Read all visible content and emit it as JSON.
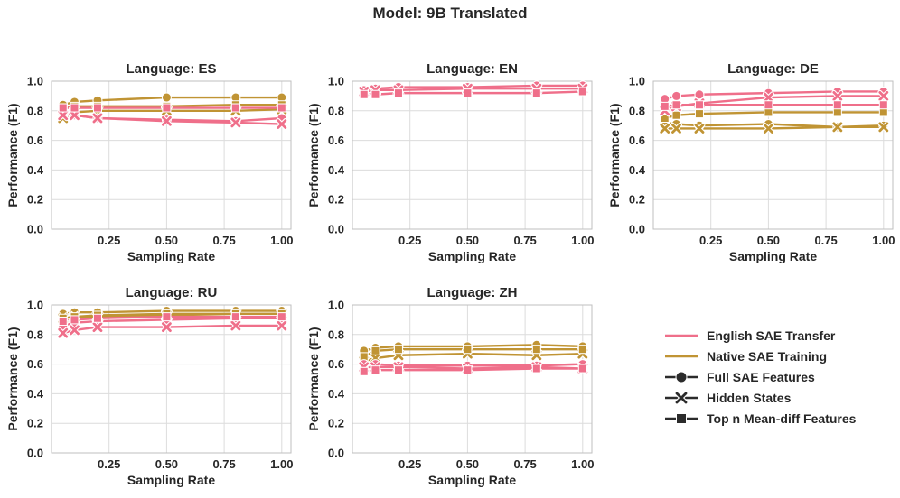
{
  "suptitle": "Model: 9B Translated",
  "colors": {
    "transfer": "#ef6f8a",
    "native": "#c09434",
    "grid": "#dcdcdc",
    "spine": "#bfbfbf",
    "legend_marker": "#2b2b2b"
  },
  "legend": {
    "items": [
      {
        "label": "English SAE Transfer",
        "kind": "line",
        "color_key": "transfer"
      },
      {
        "label": "Native SAE Training",
        "kind": "line",
        "color_key": "native"
      },
      {
        "label": "Full SAE Features",
        "kind": "marker",
        "marker": "circle"
      },
      {
        "label": "Hidden States",
        "kind": "marker",
        "marker": "x"
      },
      {
        "label": "Top n Mean-diff Features",
        "kind": "marker",
        "marker": "square"
      }
    ]
  },
  "chart_data": [
    {
      "type": "line",
      "title": "Language: ES",
      "xlabel": "Sampling Rate",
      "ylabel": "Performance (F1)",
      "xlim": [
        0.0,
        1.04
      ],
      "ylim": [
        0.0,
        1.0
      ],
      "xticks": [
        "0.25",
        "0.50",
        "0.75",
        "1.00"
      ],
      "yticks": [
        "0.0",
        "0.2",
        "0.4",
        "0.6",
        "0.8",
        "1.0"
      ],
      "x": [
        0.05,
        0.1,
        0.2,
        0.5,
        0.8,
        1.0
      ],
      "series": [
        {
          "name": "English SAE Transfer - Full SAE Features",
          "group": "transfer",
          "marker": "circle",
          "values": [
            0.78,
            0.77,
            0.75,
            0.74,
            0.73,
            0.75
          ]
        },
        {
          "name": "English SAE Transfer - Hidden States",
          "group": "transfer",
          "marker": "x",
          "values": [
            0.77,
            0.77,
            0.75,
            0.73,
            0.72,
            0.71
          ]
        },
        {
          "name": "English SAE Transfer - Top n Mean-diff Features",
          "group": "transfer",
          "marker": "square",
          "values": [
            0.82,
            0.82,
            0.82,
            0.82,
            0.82,
            0.82
          ]
        },
        {
          "name": "Native SAE Training - Full SAE Features",
          "group": "native",
          "marker": "circle",
          "values": [
            0.84,
            0.86,
            0.87,
            0.89,
            0.89,
            0.89
          ]
        },
        {
          "name": "Native SAE Training - Hidden States",
          "group": "native",
          "marker": "x",
          "values": [
            0.75,
            0.79,
            0.8,
            0.8,
            0.8,
            0.81
          ]
        },
        {
          "name": "Native SAE Training - Top n Mean-diff Features",
          "group": "native",
          "marker": "square",
          "values": [
            0.82,
            0.83,
            0.83,
            0.83,
            0.84,
            0.84
          ]
        }
      ]
    },
    {
      "type": "line",
      "title": "Language: EN",
      "xlabel": "Sampling Rate",
      "ylabel": "Performance (F1)",
      "xlim": [
        0.0,
        1.04
      ],
      "ylim": [
        0.0,
        1.0
      ],
      "xticks": [
        "0.25",
        "0.50",
        "0.75",
        "1.00"
      ],
      "yticks": [
        "0.0",
        "0.2",
        "0.4",
        "0.6",
        "0.8",
        "1.0"
      ],
      "x": [
        0.05,
        0.1,
        0.2,
        0.5,
        0.8,
        1.0
      ],
      "series": [
        {
          "name": "English SAE Transfer - Full SAE Features",
          "group": "transfer",
          "marker": "circle",
          "values": [
            0.94,
            0.95,
            0.96,
            0.96,
            0.97,
            0.97
          ]
        },
        {
          "name": "English SAE Transfer - Hidden States",
          "group": "transfer",
          "marker": "x",
          "values": [
            0.93,
            0.94,
            0.94,
            0.95,
            0.95,
            0.95
          ]
        },
        {
          "name": "English SAE Transfer - Top n Mean-diff Features",
          "group": "transfer",
          "marker": "square",
          "values": [
            0.91,
            0.91,
            0.92,
            0.92,
            0.92,
            0.93
          ]
        }
      ]
    },
    {
      "type": "line",
      "title": "Language: DE",
      "xlabel": "Sampling Rate",
      "ylabel": "Performance (F1)",
      "xlim": [
        0.0,
        1.04
      ],
      "ylim": [
        0.0,
        1.0
      ],
      "xticks": [
        "0.25",
        "0.50",
        "0.75",
        "1.00"
      ],
      "yticks": [
        "0.0",
        "0.2",
        "0.4",
        "0.6",
        "0.8",
        "1.0"
      ],
      "x": [
        0.05,
        0.1,
        0.2,
        0.5,
        0.8,
        1.0
      ],
      "series": [
        {
          "name": "English SAE Transfer - Full SAE Features",
          "group": "transfer",
          "marker": "circle",
          "values": [
            0.88,
            0.9,
            0.91,
            0.92,
            0.93,
            0.93
          ]
        },
        {
          "name": "English SAE Transfer - Hidden States",
          "group": "transfer",
          "marker": "x",
          "values": [
            0.8,
            0.83,
            0.85,
            0.89,
            0.9,
            0.9
          ]
        },
        {
          "name": "English SAE Transfer - Top n Mean-diff Features",
          "group": "transfer",
          "marker": "square",
          "values": [
            0.83,
            0.84,
            0.84,
            0.84,
            0.84,
            0.84
          ]
        },
        {
          "name": "Native SAE Training - Full SAE Features",
          "group": "native",
          "marker": "circle",
          "values": [
            0.72,
            0.71,
            0.7,
            0.71,
            0.69,
            0.7
          ]
        },
        {
          "name": "Native SAE Training - Hidden States",
          "group": "native",
          "marker": "x",
          "values": [
            0.68,
            0.68,
            0.68,
            0.68,
            0.69,
            0.69
          ]
        },
        {
          "name": "Native SAE Training - Top n Mean-diff Features",
          "group": "native",
          "marker": "square",
          "values": [
            0.75,
            0.77,
            0.78,
            0.79,
            0.79,
            0.79
          ]
        }
      ]
    },
    {
      "type": "line",
      "title": "Language: RU",
      "xlabel": "Sampling Rate",
      "ylabel": "Performance (F1)",
      "xlim": [
        0.0,
        1.04
      ],
      "ylim": [
        0.0,
        1.0
      ],
      "xticks": [
        "0.25",
        "0.50",
        "0.75",
        "1.00"
      ],
      "yticks": [
        "0.0",
        "0.2",
        "0.4",
        "0.6",
        "0.8",
        "1.0"
      ],
      "x": [
        0.05,
        0.1,
        0.2,
        0.5,
        0.8,
        1.0
      ],
      "series": [
        {
          "name": "English SAE Transfer - Full SAE Features",
          "group": "transfer",
          "marker": "circle",
          "values": [
            0.86,
            0.88,
            0.89,
            0.9,
            0.91,
            0.91
          ]
        },
        {
          "name": "English SAE Transfer - Hidden States",
          "group": "transfer",
          "marker": "x",
          "values": [
            0.81,
            0.83,
            0.85,
            0.85,
            0.86,
            0.86
          ]
        },
        {
          "name": "English SAE Transfer - Top n Mean-diff Features",
          "group": "transfer",
          "marker": "square",
          "values": [
            0.89,
            0.9,
            0.91,
            0.92,
            0.92,
            0.92
          ]
        },
        {
          "name": "Native SAE Training - Full SAE Features",
          "group": "native",
          "marker": "circle",
          "values": [
            0.94,
            0.95,
            0.95,
            0.96,
            0.96,
            0.96
          ]
        },
        {
          "name": "Native SAE Training - Hidden States",
          "group": "native",
          "marker": "x",
          "values": [
            0.91,
            0.92,
            0.92,
            0.93,
            0.94,
            0.94
          ]
        },
        {
          "name": "Native SAE Training - Top n Mean-diff Features",
          "group": "native",
          "marker": "square",
          "values": [
            0.91,
            0.92,
            0.93,
            0.94,
            0.94,
            0.94
          ]
        }
      ]
    },
    {
      "type": "line",
      "title": "Language: ZH",
      "xlabel": "Sampling Rate",
      "ylabel": "Performance (F1)",
      "xlim": [
        0.0,
        1.04
      ],
      "ylim": [
        0.0,
        1.0
      ],
      "xticks": [
        "0.25",
        "0.50",
        "0.75",
        "1.00"
      ],
      "yticks": [
        "0.0",
        "0.2",
        "0.4",
        "0.6",
        "0.8",
        "1.0"
      ],
      "x": [
        0.05,
        0.1,
        0.2,
        0.5,
        0.8,
        1.0
      ],
      "series": [
        {
          "name": "English SAE Transfer - Full SAE Features",
          "group": "transfer",
          "marker": "circle",
          "values": [
            0.6,
            0.6,
            0.59,
            0.59,
            0.59,
            0.6
          ]
        },
        {
          "name": "English SAE Transfer - Hidden States",
          "group": "transfer",
          "marker": "x",
          "values": [
            0.58,
            0.58,
            0.58,
            0.57,
            0.58,
            0.57
          ]
        },
        {
          "name": "English SAE Transfer - Top n Mean-diff Features",
          "group": "transfer",
          "marker": "square",
          "values": [
            0.55,
            0.56,
            0.56,
            0.56,
            0.57,
            0.57
          ]
        },
        {
          "name": "Native SAE Training - Full SAE Features",
          "group": "native",
          "marker": "circle",
          "values": [
            0.69,
            0.71,
            0.72,
            0.72,
            0.73,
            0.72
          ]
        },
        {
          "name": "Native SAE Training - Hidden States",
          "group": "native",
          "marker": "x",
          "values": [
            0.62,
            0.64,
            0.66,
            0.67,
            0.66,
            0.67
          ]
        },
        {
          "name": "Native SAE Training - Top n Mean-diff Features",
          "group": "native",
          "marker": "square",
          "values": [
            0.65,
            0.69,
            0.7,
            0.7,
            0.7,
            0.7
          ]
        }
      ]
    }
  ]
}
